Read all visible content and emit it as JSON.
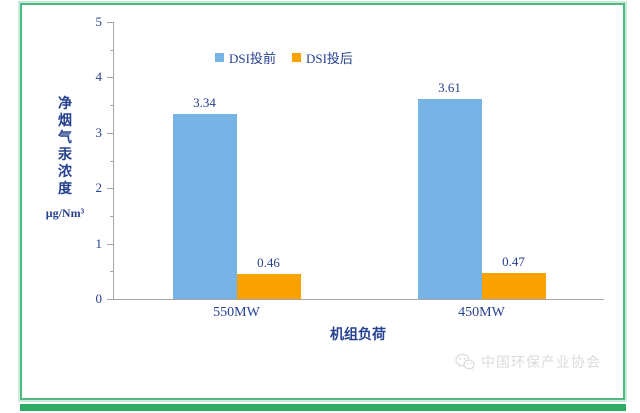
{
  "chart_data": {
    "type": "bar",
    "categories": [
      "550MW",
      "450MW"
    ],
    "series": [
      {
        "name": "DSI投前",
        "color": "#77B3E4",
        "values": [
          3.34,
          3.61
        ]
      },
      {
        "name": "DSI投后",
        "color": "#FAA202",
        "values": [
          0.46,
          0.47
        ]
      }
    ],
    "title": "",
    "xlabel": "机组负荷",
    "ylabel_vertical": "净烟气汞浓度",
    "ylabel_unit": "μg/Nm³",
    "ylim": [
      0,
      5
    ],
    "yticks": [
      0,
      1,
      2,
      3,
      4,
      5
    ],
    "ytick_minor_step": 0.5,
    "value_decimals": 2,
    "grid": false,
    "legend_position": "top"
  },
  "watermark": {
    "icon": "wechat-icon",
    "text": "中国环保产业协会"
  },
  "colors": {
    "frame_border": "#4EB981",
    "bottom_bar": "#2EAC63",
    "axis": "#A6A6A6",
    "text": "#26418F",
    "watermark": "#DBDBDB"
  }
}
